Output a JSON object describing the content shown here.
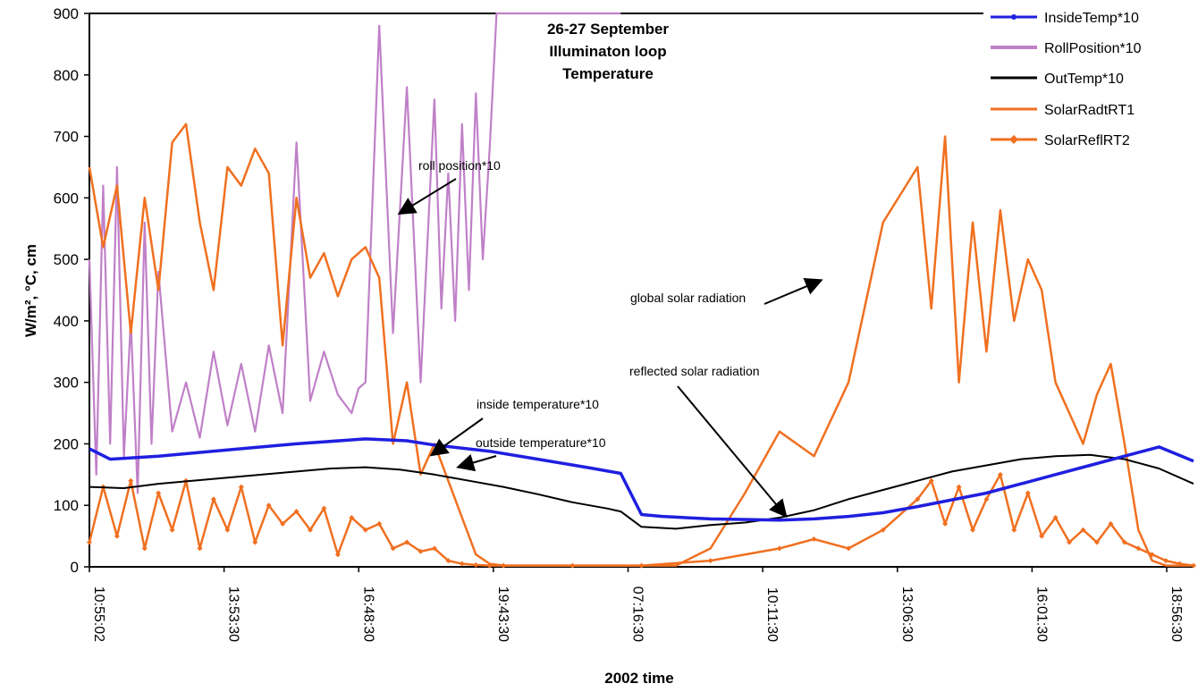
{
  "chart_data": {
    "type": "line",
    "title_lines": [
      "26-27 September",
      "Illuminaton loop",
      "Temperature"
    ],
    "xlabel": "2002  time",
    "ylabel": "W/m², °C, cm",
    "ylim": [
      0,
      900
    ],
    "y_ticks": [
      0,
      100,
      200,
      300,
      400,
      500,
      600,
      700,
      800,
      900
    ],
    "x_ticks": [
      "10:55:02",
      "13:53:30",
      "16:48:30",
      "19:43:30",
      "07:16:30",
      "10:11:30",
      "13:06:30",
      "16:01:30",
      "18:56:30"
    ],
    "x_range": [
      0,
      16
    ],
    "legend_position": "top-right",
    "series": [
      {
        "name": "InsideTemp*10",
        "color": "#1f1fe0",
        "x": [
          0,
          0.3,
          1,
          2,
          3,
          4,
          4.6,
          5,
          5.8,
          6.5,
          7.3,
          7.7,
          8,
          8.3,
          9,
          10,
          10.5,
          11,
          11.5,
          12,
          13,
          14,
          14.5,
          15,
          15.5,
          16
        ],
        "values": [
          192,
          175,
          180,
          190,
          200,
          208,
          205,
          198,
          188,
          175,
          160,
          152,
          85,
          82,
          78,
          76,
          78,
          82,
          88,
          98,
          120,
          150,
          165,
          180,
          195,
          172
        ]
      },
      {
        "name": "RollPosition*10",
        "color": "#c080c8",
        "x": [
          0,
          0.1,
          0.2,
          0.3,
          0.4,
          0.5,
          0.6,
          0.7,
          0.8,
          0.9,
          1,
          1.2,
          1.4,
          1.6,
          1.8,
          2,
          2.2,
          2.4,
          2.6,
          2.8,
          3,
          3.2,
          3.4,
          3.6,
          3.8,
          3.9,
          4,
          4.2,
          4.4,
          4.6,
          4.8,
          5,
          5.1,
          5.2,
          5.3,
          5.4,
          5.5,
          5.6,
          5.7,
          5.8,
          5.9,
          6,
          6.1,
          6.2,
          6.3,
          6.4,
          6.5,
          6.6,
          6.7,
          6.8,
          6.9,
          7.0,
          7.1,
          7.2,
          7.3,
          7.4,
          7.5,
          7.6,
          7.7
        ],
        "values": [
          500,
          150,
          620,
          200,
          650,
          180,
          400,
          120,
          560,
          200,
          480,
          220,
          300,
          210,
          350,
          230,
          330,
          220,
          360,
          250,
          690,
          270,
          350,
          280,
          250,
          290,
          300,
          880,
          380,
          780,
          300,
          760,
          420,
          640,
          400,
          720,
          450,
          770,
          500,
          680,
          900,
          900,
          900,
          900,
          900,
          900,
          900,
          900,
          900,
          900,
          900,
          900,
          900,
          900,
          900,
          900,
          900,
          900,
          900
        ]
      },
      {
        "name": "OutTemp*10",
        "color": "#000000",
        "x": [
          0,
          0.5,
          1,
          2,
          3,
          3.5,
          4,
          4.5,
          5,
          5.5,
          6,
          6.5,
          7,
          7.5,
          7.7,
          8,
          8.5,
          9,
          9.5,
          10,
          10.5,
          11,
          11.5,
          12,
          12.5,
          13,
          13.5,
          14,
          14.5,
          15,
          15.5,
          16
        ],
        "values": [
          130,
          128,
          135,
          145,
          155,
          160,
          162,
          158,
          150,
          140,
          130,
          118,
          105,
          95,
          90,
          65,
          62,
          68,
          72,
          80,
          92,
          110,
          125,
          140,
          155,
          165,
          175,
          180,
          182,
          175,
          160,
          135
        ]
      },
      {
        "name": "SolarRadtRT1",
        "color": "#f07020",
        "x": [
          0,
          0.2,
          0.4,
          0.6,
          0.8,
          1,
          1.2,
          1.4,
          1.6,
          1.8,
          2,
          2.2,
          2.4,
          2.6,
          2.8,
          3,
          3.2,
          3.4,
          3.6,
          3.8,
          4,
          4.2,
          4.4,
          4.6,
          4.8,
          5,
          5.2,
          5.4,
          5.6,
          5.8,
          6,
          6.2,
          6.4,
          6.6,
          6.8,
          7,
          7.2,
          7.4,
          7.6,
          7.8,
          8,
          8.5,
          9,
          9.5,
          10,
          10.5,
          11,
          11.5,
          12,
          12.2,
          12.4,
          12.6,
          12.8,
          13,
          13.2,
          13.4,
          13.6,
          13.8,
          14,
          14.2,
          14.4,
          14.6,
          14.8,
          15,
          15.2,
          15.4,
          15.6,
          15.8,
          16
        ],
        "values": [
          650,
          520,
          620,
          380,
          600,
          450,
          690,
          720,
          560,
          450,
          650,
          620,
          680,
          640,
          360,
          600,
          470,
          510,
          440,
          500,
          520,
          470,
          200,
          300,
          150,
          200,
          140,
          80,
          20,
          5,
          2,
          2,
          2,
          2,
          2,
          2,
          2,
          2,
          2,
          2,
          2,
          2,
          30,
          120,
          220,
          180,
          300,
          560,
          650,
          420,
          700,
          300,
          560,
          350,
          580,
          400,
          500,
          450,
          300,
          250,
          200,
          280,
          330,
          200,
          60,
          10,
          2,
          2,
          2
        ]
      },
      {
        "name": "SolarReflRT2",
        "color": "#f07020",
        "x": [
          0,
          0.2,
          0.4,
          0.6,
          0.8,
          1,
          1.2,
          1.4,
          1.6,
          1.8,
          2,
          2.2,
          2.4,
          2.6,
          2.8,
          3,
          3.2,
          3.4,
          3.6,
          3.8,
          4,
          4.2,
          4.4,
          4.6,
          4.8,
          5,
          5.2,
          5.4,
          5.6,
          5.8,
          6,
          7,
          8,
          9,
          10,
          10.5,
          11,
          11.5,
          12,
          12.2,
          12.4,
          12.6,
          12.8,
          13,
          13.2,
          13.4,
          13.6,
          13.8,
          14,
          14.2,
          14.4,
          14.6,
          14.8,
          15,
          15.2,
          15.4,
          15.6,
          15.8,
          16
        ],
        "values": [
          40,
          130,
          50,
          140,
          30,
          120,
          60,
          140,
          30,
          110,
          60,
          130,
          40,
          100,
          70,
          90,
          60,
          95,
          20,
          80,
          60,
          70,
          30,
          40,
          25,
          30,
          10,
          5,
          3,
          2,
          2,
          2,
          2,
          10,
          30,
          45,
          30,
          60,
          110,
          140,
          70,
          130,
          60,
          110,
          150,
          60,
          120,
          50,
          80,
          40,
          60,
          40,
          70,
          40,
          30,
          20,
          10,
          5,
          2
        ]
      }
    ],
    "annotations": [
      "roll position*10",
      "global solar radiation",
      "reflected solar radiation",
      "inside temperature*10",
      "outside temperature*10"
    ]
  }
}
